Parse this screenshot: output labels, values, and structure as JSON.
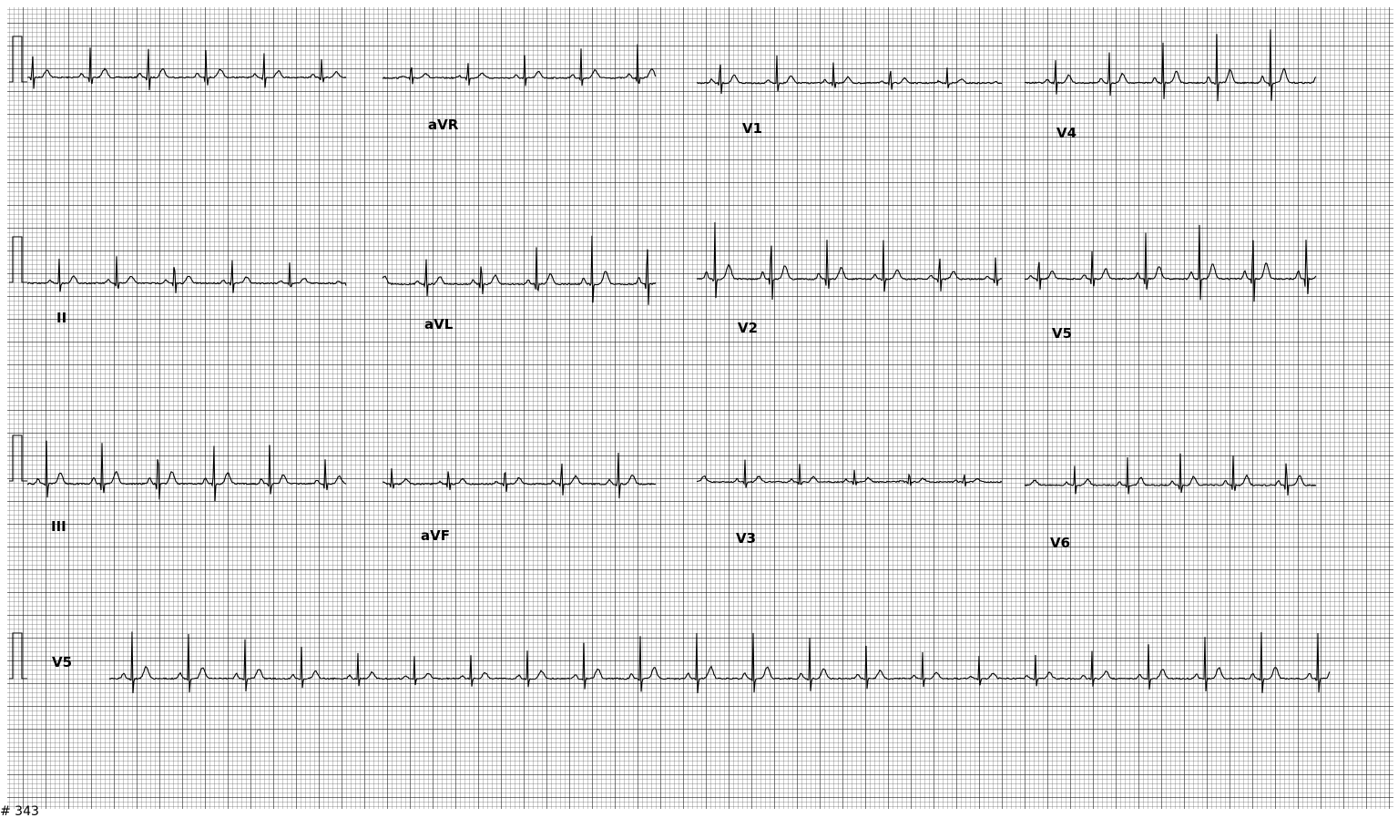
{
  "leads": [
    {
      "label": "aVR"
    },
    {
      "label": "V1"
    },
    {
      "label": "V4"
    },
    {
      "label": "II"
    },
    {
      "label": "aVL"
    },
    {
      "label": "V2"
    },
    {
      "label": "V5"
    },
    {
      "label": "III"
    },
    {
      "label": "aVF"
    },
    {
      "label": "V3"
    },
    {
      "label": "V6"
    },
    {
      "label": "V5"
    }
  ],
  "footer": "# 343"
}
